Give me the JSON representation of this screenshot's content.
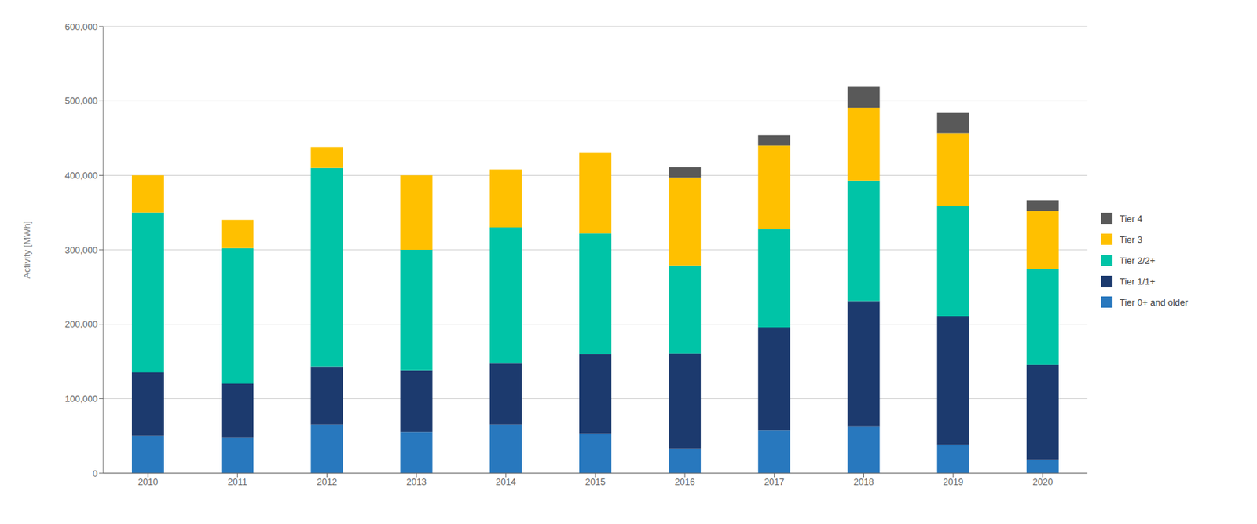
{
  "chart_data": {
    "type": "bar",
    "stacked": true,
    "grid": true,
    "legend": "right",
    "ylabel": "Activity [MWh]",
    "categories": [
      "2010",
      "2011",
      "2012",
      "2013",
      "2014",
      "2015",
      "2016",
      "2017",
      "2018",
      "2019",
      "2020"
    ],
    "series": [
      {
        "name": "Tier 0+ and older",
        "color": "#2878be",
        "values": [
          50000,
          48000,
          65000,
          55000,
          65000,
          53000,
          33000,
          58000,
          63000,
          38000,
          18000
        ]
      },
      {
        "name": "Tier 1/1+",
        "color": "#1c3a6e",
        "values": [
          85000,
          72000,
          78000,
          83000,
          83000,
          107000,
          128000,
          138000,
          168000,
          173000,
          128000
        ]
      },
      {
        "name": "Tier 2/2+",
        "color": "#00c4a7",
        "values": [
          215000,
          182000,
          267000,
          162000,
          182000,
          162000,
          118000,
          132000,
          162000,
          148000,
          128000
        ]
      },
      {
        "name": "Tier 3",
        "color": "#ffc000",
        "values": [
          50000,
          38000,
          28000,
          100000,
          78000,
          108000,
          118000,
          112000,
          98000,
          98000,
          78000
        ]
      },
      {
        "name": "Tier 4",
        "color": "#595959",
        "values": [
          0,
          0,
          0,
          0,
          0,
          0,
          14000,
          14000,
          28000,
          27000,
          14000
        ]
      }
    ],
    "ylim": [
      0,
      600000
    ],
    "yticks": [
      0,
      {
        "value": 100000,
        "label": "100,000"
      },
      {
        "value": 200000,
        "label": "200,000"
      },
      {
        "value": 300000,
        "label": "300,000"
      },
      {
        "value": 400000,
        "label": "400,000"
      },
      {
        "value": 500000,
        "label": "500,000"
      },
      {
        "value": 600000,
        "label": "600,000"
      }
    ]
  }
}
